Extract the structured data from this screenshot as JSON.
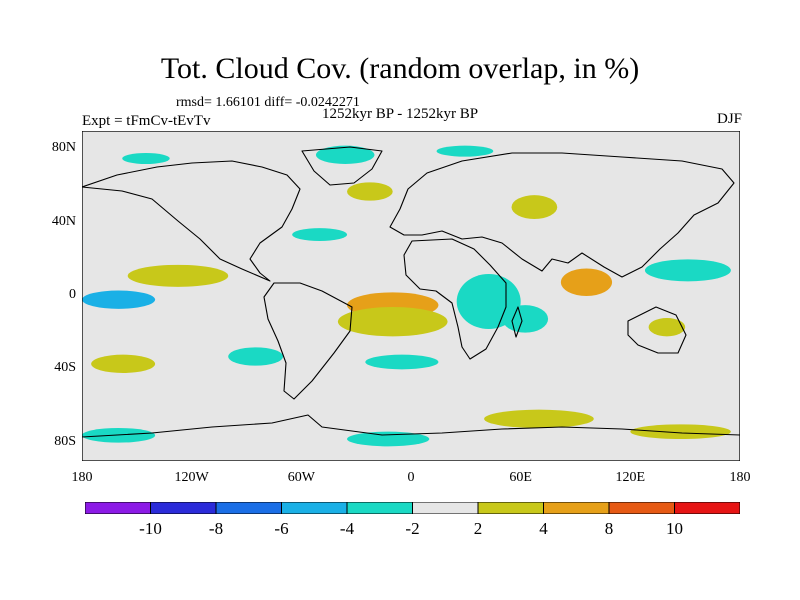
{
  "figure": {
    "title": "Tot. Cloud Cov. (random overlap, in %)",
    "stats": "rmsd= 1.66101 diff= -0.0242271",
    "experiment": "Expt = tFmCv-tEvTv",
    "period": "1252kyr BP - 1252kyr BP",
    "season": "DJF"
  },
  "map": {
    "projection": "cylindrical equidistant",
    "lat_range": [
      -90,
      90
    ],
    "lon_range": [
      -180,
      180
    ],
    "background_color": "#e6e6e6",
    "y_tick_labels": [
      {
        "label": "80N",
        "lat": 80
      },
      {
        "label": "40N",
        "lat": 40
      },
      {
        "label": "0",
        "lat": 0
      },
      {
        "label": "40S",
        "lat": -40
      },
      {
        "label": "80S",
        "lat": -80
      }
    ],
    "x_tick_labels": [
      {
        "label": "180",
        "lon": -180
      },
      {
        "label": "120W",
        "lon": -120
      },
      {
        "label": "60W",
        "lon": -60
      },
      {
        "label": "0",
        "lon": 0
      },
      {
        "label": "60E",
        "lon": 60
      },
      {
        "label": "120E",
        "lon": 120
      },
      {
        "label": "180",
        "lon": 180
      }
    ]
  },
  "colorbar": {
    "bins": [
      {
        "color": "#8c1ae6"
      },
      {
        "color": "#2b2bd9"
      },
      {
        "color": "#1a6ee6"
      },
      {
        "color": "#1ab0e6"
      },
      {
        "color": "#1ad9c4"
      },
      {
        "color": "#e6e6e6"
      },
      {
        "color": "#c8c81a"
      },
      {
        "color": "#e6a019"
      },
      {
        "color": "#e65a14"
      },
      {
        "color": "#e61414"
      }
    ],
    "labels": [
      {
        "text": "-10",
        "boundary": 1
      },
      {
        "text": "-8",
        "boundary": 2
      },
      {
        "text": "-6",
        "boundary": 3
      },
      {
        "text": "-4",
        "boundary": 4
      },
      {
        "text": "-2",
        "boundary": 5
      },
      {
        "text": "2",
        "boundary": 6
      },
      {
        "text": "4",
        "boundary": 7
      },
      {
        "text": "8",
        "boundary": 8
      },
      {
        "text": "10",
        "boundary": 9
      }
    ]
  },
  "anomaly_patches": [
    {
      "region": "north-pacific",
      "level": "-4",
      "color": "#1ad9c4",
      "lon": [
        -158,
        -132
      ],
      "lat": [
        78,
        72
      ]
    },
    {
      "region": "greenland-arctic",
      "level": "-4",
      "color": "#1ad9c4",
      "lon": [
        -52,
        -20
      ],
      "lat": [
        82,
        72
      ]
    },
    {
      "region": "arctic-europe",
      "level": "-4",
      "color": "#1ad9c4",
      "lon": [
        14,
        45
      ],
      "lat": [
        82,
        76
      ]
    },
    {
      "region": "north-atlantic",
      "level": "2",
      "color": "#c8c81a",
      "lon": [
        -35,
        -10
      ],
      "lat": [
        62,
        52
      ]
    },
    {
      "region": "central-asia",
      "level": "2",
      "color": "#c8c81a",
      "lon": [
        55,
        80
      ],
      "lat": [
        55,
        42
      ]
    },
    {
      "region": "north-atlantic-sub",
      "level": "-4",
      "color": "#1ad9c4",
      "lon": [
        -65,
        -35
      ],
      "lat": [
        37,
        30
      ]
    },
    {
      "region": "east-pacific-north",
      "level": "2",
      "color": "#c8c81a",
      "lon": [
        -155,
        -100
      ],
      "lat": [
        17,
        5
      ]
    },
    {
      "region": "east-pacific-eq",
      "level": "-6",
      "color": "#1ab0e6",
      "lon": [
        -180,
        -140
      ],
      "lat": [
        3,
        -7
      ]
    },
    {
      "region": "tropical-atlantic",
      "level": "4",
      "color": "#e6a019",
      "lon": [
        -35,
        15
      ],
      "lat": [
        2,
        -12
      ]
    },
    {
      "region": "south-atlantic",
      "level": "2",
      "color": "#c8c81a",
      "lon": [
        -40,
        20
      ],
      "lat": [
        -6,
        -22
      ]
    },
    {
      "region": "east-africa",
      "level": "-4",
      "color": "#1ad9c4",
      "lon": [
        25,
        60
      ],
      "lat": [
        12,
        -18
      ]
    },
    {
      "region": "indian-ocean",
      "level": "-4",
      "color": "#1ad9c4",
      "lon": [
        50,
        75
      ],
      "lat": [
        -5,
        -20
      ]
    },
    {
      "region": "bay-of-bengal",
      "level": "4",
      "color": "#e6a019",
      "lon": [
        82,
        110
      ],
      "lat": [
        15,
        0
      ]
    },
    {
      "region": "west-pacific",
      "level": "-4",
      "color": "#1ad9c4",
      "lon": [
        128,
        175
      ],
      "lat": [
        20,
        8
      ]
    },
    {
      "region": "australia",
      "level": "2",
      "color": "#c8c81a",
      "lon": [
        130,
        150
      ],
      "lat": [
        -12,
        -22
      ]
    },
    {
      "region": "south-pacific",
      "level": "2",
      "color": "#c8c81a",
      "lon": [
        -175,
        -140
      ],
      "lat": [
        -32,
        -42
      ]
    },
    {
      "region": "south-pacific-east",
      "level": "-4",
      "color": "#1ad9c4",
      "lon": [
        -100,
        -70
      ],
      "lat": [
        -28,
        -38
      ]
    },
    {
      "region": "south-atlantic-mid",
      "level": "-4",
      "color": "#1ad9c4",
      "lon": [
        -25,
        15
      ],
      "lat": [
        -32,
        -40
      ]
    },
    {
      "region": "southern-ocean-west",
      "level": "-4",
      "color": "#1ad9c4",
      "lon": [
        -180,
        -140
      ],
      "lat": [
        -72,
        -80
      ]
    },
    {
      "region": "southern-ocean-south-atlantic",
      "level": "-4",
      "color": "#1ad9c4",
      "lon": [
        -35,
        10
      ],
      "lat": [
        -74,
        -82
      ]
    },
    {
      "region": "southern-ocean-indian",
      "level": "2",
      "color": "#c8c81a",
      "lon": [
        40,
        100
      ],
      "lat": [
        -62,
        -72
      ]
    },
    {
      "region": "southern-ocean-pacific",
      "level": "2",
      "color": "#c8c81a",
      "lon": [
        120,
        175
      ],
      "lat": [
        -70,
        -78
      ]
    }
  ]
}
